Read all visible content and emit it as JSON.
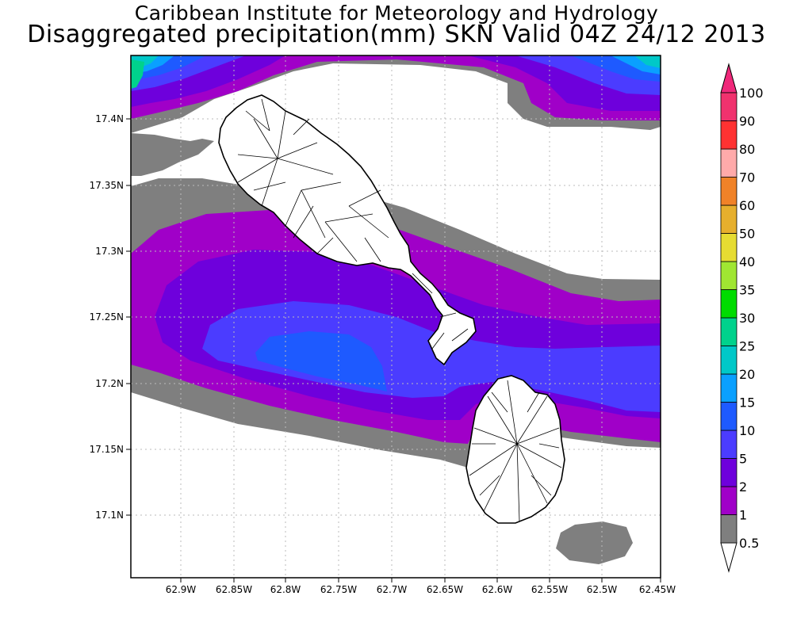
{
  "title_line1": "Caribbean Institute for Meteorology and Hydrology",
  "title_line2": "Disaggregated precipitation(mm) SKN Valid 04Z 24/12 2013",
  "x_ticks": [
    "62.9W",
    "62.85W",
    "62.8W",
    "62.75W",
    "62.7W",
    "62.65W",
    "62.6W",
    "62.55W",
    "62.5W",
    "62.45W"
  ],
  "y_ticks": [
    "17.4N",
    "17.35N",
    "17.3N",
    "17.25N",
    "17.2N",
    "17.15N",
    "17.1N"
  ],
  "legend": {
    "levels": [
      "0.5",
      "1",
      "2",
      "5",
      "10",
      "15",
      "20",
      "25",
      "30",
      "35",
      "40",
      "50",
      "60",
      "70",
      "80",
      "90",
      "100"
    ],
    "colors": [
      "#7f7f7f",
      "#a000c8",
      "#6e00dc",
      "#4b3cff",
      "#1e5aff",
      "#0aa0ff",
      "#00c8c8",
      "#00d28c",
      "#00dc00",
      "#a0e632",
      "#e6dc32",
      "#e6af2d",
      "#f08228",
      "#ffaaaa",
      "#ff3232",
      "#f0326e"
    ],
    "below_color": "#ffffff",
    "above_color": "#f0287a"
  }
}
